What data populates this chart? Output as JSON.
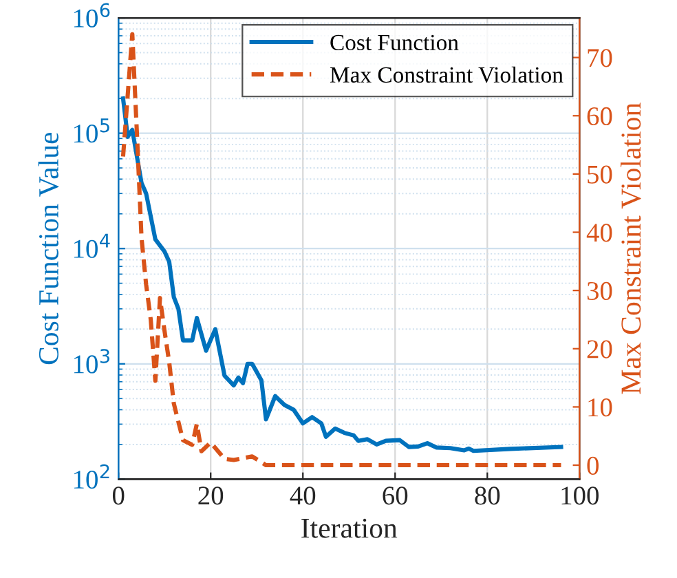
{
  "chart_data": {
    "type": "line",
    "xlabel": "Iteration",
    "ylabel": "Cost Function Value",
    "y2label": "Max Constraint Violation",
    "series": [
      {
        "name": "Cost Function",
        "color": "#0072bd",
        "line_style": "solid",
        "x": [
          1,
          2,
          3,
          5,
          6,
          8,
          10,
          11,
          12,
          13,
          14,
          16,
          17,
          19,
          21,
          23,
          25,
          26,
          27,
          28,
          29,
          31,
          32,
          34,
          36,
          38,
          40,
          42,
          44,
          45,
          47,
          49,
          51,
          52,
          54,
          56,
          58,
          61,
          63,
          65,
          67,
          69,
          72,
          75,
          76,
          77,
          85,
          96
        ],
        "values": [
          200000,
          93000,
          107000,
          37000,
          30000,
          12000,
          9400,
          7700,
          3800,
          3000,
          1600,
          1600,
          2500,
          1300,
          2000,
          790,
          650,
          760,
          680,
          1000,
          1000,
          720,
          330,
          525,
          440,
          400,
          305,
          345,
          305,
          233,
          275,
          252,
          240,
          215,
          222,
          200,
          215,
          218,
          190,
          192,
          205,
          188,
          186,
          178,
          184,
          176,
          183,
          190
        ]
      },
      {
        "name": "Max Constraint Violation",
        "color": "#d95319",
        "line_style": "dashed",
        "axis": "y2",
        "x": [
          1,
          3,
          4,
          5,
          6,
          7,
          8,
          9,
          10,
          11,
          12,
          14,
          16,
          17,
          18,
          20,
          23,
          25,
          29,
          32,
          96
        ],
        "values": [
          53,
          74,
          57,
          39,
          31,
          25,
          14.5,
          28.7,
          23,
          17.7,
          10.6,
          4.3,
          3.5,
          7.1,
          2.4,
          3.9,
          1.1,
          0.9,
          1.5,
          0,
          0
        ]
      }
    ],
    "xlim": [
      0,
      100
    ],
    "xticks": [
      0,
      20,
      40,
      60,
      80,
      100
    ],
    "log": "y",
    "ylim": [
      100,
      1000000
    ],
    "yticks": [
      {
        "value": 100,
        "label": "10$^{2}$"
      },
      {
        "value": 1000,
        "label": "10$^{3}$"
      },
      {
        "value": 10000,
        "label": "10$^{4}$"
      },
      {
        "value": 100000,
        "label": "10$^{5}$"
      },
      {
        "value": 1000000,
        "label": "10$^{6}$"
      }
    ],
    "y2lim": [
      -2.4,
      76.8
    ],
    "y2ticks": [
      0,
      10,
      20,
      30,
      40,
      50,
      60,
      70
    ],
    "grid": true,
    "legend": "top right"
  }
}
